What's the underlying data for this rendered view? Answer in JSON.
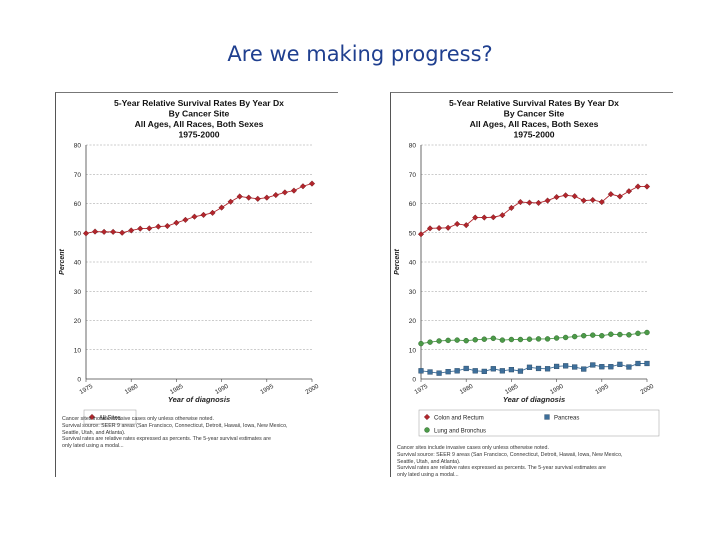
{
  "slide": {
    "title": "Are we making progress?"
  },
  "colors": {
    "title": "#1f3f8f",
    "red_series": "#b3252c",
    "blue_series": "#3e6f9a",
    "green_series": "#4c9a48",
    "grid": "#999999"
  },
  "chart_data": [
    {
      "type": "line",
      "title": [
        "5-Year Relative Survival Rates By Year Dx",
        "By Cancer Site",
        "All Ages, All Races, Both Sexes",
        "1975-2000"
      ],
      "xlabel": "Year of diagnosis",
      "ylabel": "Percent",
      "xlim": [
        1975,
        2000
      ],
      "ylim": [
        0,
        80
      ],
      "yticks": [
        "0",
        "10",
        "20",
        "30",
        "40",
        "50",
        "60",
        "70",
        "80"
      ],
      "xticks": [
        {
          "value": 1975,
          "label": "1975"
        },
        {
          "value": 1980,
          "label": "1980"
        },
        {
          "value": 1985,
          "label": "1985"
        },
        {
          "value": 1990,
          "label": "1990"
        },
        {
          "value": 1995,
          "label": "1995"
        },
        {
          "value": 2000,
          "label": "2000"
        }
      ],
      "x": [
        1975,
        1976,
        1977,
        1978,
        1979,
        1980,
        1981,
        1982,
        1983,
        1984,
        1985,
        1986,
        1987,
        1988,
        1989,
        1990,
        1991,
        1992,
        1993,
        1994,
        1995,
        1996,
        1997,
        1998,
        1999,
        2000
      ],
      "series": [
        {
          "name": "All Sites",
          "marker": "diamond",
          "color": "#b3252c",
          "values": [
            49.8,
            50.4,
            50.3,
            50.3,
            50.0,
            50.8,
            51.4,
            51.5,
            52.1,
            52.3,
            53.4,
            54.4,
            55.5,
            56.1,
            56.8,
            58.6,
            60.6,
            62.4,
            62.0,
            61.6,
            62.0,
            62.9,
            63.8,
            64.4,
            65.9,
            66.8
          ]
        }
      ],
      "legend": [
        "All Sites"
      ],
      "footnote": "Cancer sites include invasive cases only unless otherwise noted.\nSurvival source: SEER 9 areas (San Francisco, Connecticut, Detroit, Hawaii, Iowa, New Mexico,\nSeattle, Utah, and Atlanta).\nSurvival rates are relative rates expressed as percents. The 5-year survival estimates are\nonly lated using a modal..."
    },
    {
      "type": "line",
      "title": [
        "5-Year Relative Survival Rates By Year Dx",
        "By Cancer Site",
        "All Ages, All Races, Both Sexes",
        "1975-2000"
      ],
      "xlabel": "Year of diagnosis",
      "ylabel": "Percent",
      "xlim": [
        1975,
        2000
      ],
      "ylim": [
        0,
        80
      ],
      "yticks": [
        "0",
        "10",
        "20",
        "30",
        "40",
        "50",
        "60",
        "70",
        "80"
      ],
      "xticks": [
        {
          "value": 1975,
          "label": "1975"
        },
        {
          "value": 1980,
          "label": "1980"
        },
        {
          "value": 1985,
          "label": "1985"
        },
        {
          "value": 1990,
          "label": "1990"
        },
        {
          "value": 1995,
          "label": "1995"
        },
        {
          "value": 2000,
          "label": "2000"
        }
      ],
      "x": [
        1975,
        1976,
        1977,
        1978,
        1979,
        1980,
        1981,
        1982,
        1983,
        1984,
        1985,
        1986,
        1987,
        1988,
        1989,
        1990,
        1991,
        1992,
        1993,
        1994,
        1995,
        1996,
        1997,
        1998,
        1999,
        2000
      ],
      "series": [
        {
          "name": "Colon and Rectum",
          "marker": "diamond",
          "color": "#b3252c",
          "values": [
            49.5,
            51.5,
            51.6,
            51.7,
            53.0,
            52.6,
            55.2,
            55.2,
            55.3,
            56.0,
            58.5,
            60.5,
            60.3,
            60.2,
            61.0,
            62.2,
            62.8,
            62.5,
            61.0,
            61.2,
            60.5,
            63.2,
            62.4,
            64.2,
            65.8,
            65.8
          ]
        },
        {
          "name": "Pancreas",
          "marker": "square",
          "color": "#3e6f9a",
          "values": [
            2.8,
            2.4,
            2.0,
            2.5,
            2.8,
            3.6,
            2.8,
            2.6,
            3.5,
            2.8,
            3.2,
            2.7,
            4.0,
            3.6,
            3.5,
            4.3,
            4.5,
            4.1,
            3.4,
            4.8,
            4.2,
            4.2,
            5.0,
            4.1,
            5.3,
            5.3
          ]
        },
        {
          "name": "Lung and Bronchus",
          "marker": "circle",
          "color": "#4c9a48",
          "values": [
            12.1,
            12.6,
            13.0,
            13.2,
            13.3,
            13.1,
            13.4,
            13.6,
            13.9,
            13.3,
            13.5,
            13.5,
            13.6,
            13.7,
            13.7,
            14.0,
            14.2,
            14.5,
            14.8,
            15.0,
            14.8,
            15.3,
            15.2,
            15.1,
            15.6,
            15.9
          ]
        }
      ],
      "legend": [
        "Colon and Rectum",
        "Pancreas",
        "Lung and Bronchus"
      ],
      "footnote": "Cancer sites include invasive cases only unless otherwise noted.\nSurvival source: SEER 9 areas (San Francisco, Connecticut, Detroit, Hawaii, Iowa, New Mexico,\nSeattle, Utah, and Atlanta).\nSurvival rates are relative rates expressed as percents. The 5-year survival estimates are\nonly lated using a modal..."
    }
  ]
}
